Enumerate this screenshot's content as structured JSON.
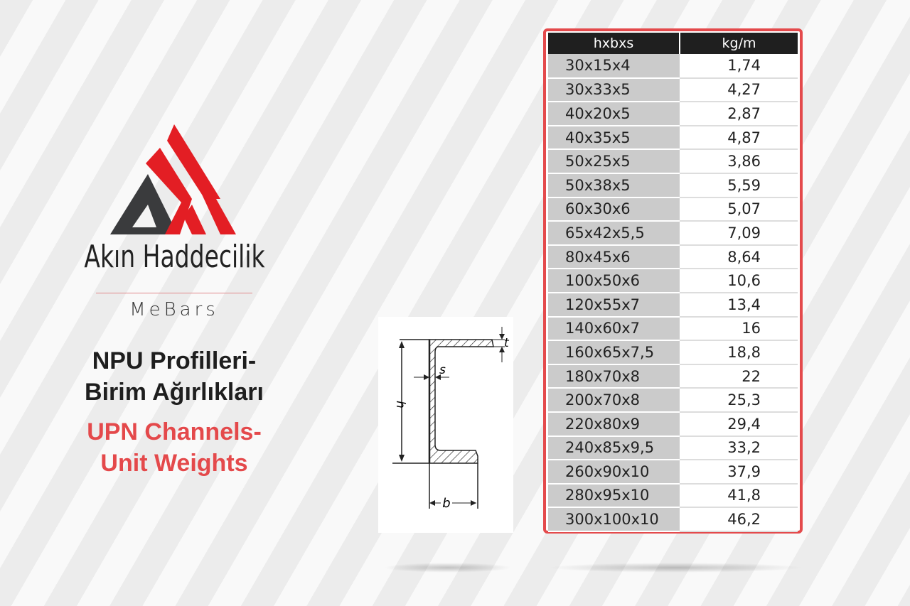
{
  "brand": {
    "name": "Akın Haddecilik",
    "sub": "MeBars",
    "colors": {
      "red": "#e31e24",
      "dark": "#3a3b3d"
    }
  },
  "title": {
    "tr_line1": "NPU Profilleri-",
    "tr_line2": "Birim Ağırlıkları",
    "en_line1": "UPN Channels-",
    "en_line2": "Unit Weights"
  },
  "diagram": {
    "labels": {
      "h": "h",
      "b": "b",
      "s": "s",
      "t": "t"
    }
  },
  "table": {
    "headers": [
      "hxbxs",
      "kg/m"
    ],
    "rows": [
      [
        "30x15x4",
        "1,74"
      ],
      [
        "30x33x5",
        "4,27"
      ],
      [
        "40x20x5",
        "2,87"
      ],
      [
        "40x35x5",
        "4,87"
      ],
      [
        "50x25x5",
        "3,86"
      ],
      [
        "50x38x5",
        "5,59"
      ],
      [
        "60x30x6",
        "5,07"
      ],
      [
        "65x42x5,5",
        "7,09"
      ],
      [
        "80x45x6",
        "8,64"
      ],
      [
        "100x50x6",
        "10,6"
      ],
      [
        "120x55x7",
        "13,4"
      ],
      [
        "140x60x7",
        "16"
      ],
      [
        "160x65x7,5",
        "18,8"
      ],
      [
        "180x70x8",
        "22"
      ],
      [
        "200x70x8",
        "25,3"
      ],
      [
        "220x80x9",
        "29,4"
      ],
      [
        "240x85x9,5",
        "33,2"
      ],
      [
        "260x90x10",
        "37,9"
      ],
      [
        "280x95x10",
        "41,8"
      ],
      [
        "300x100x10",
        "46,2"
      ]
    ],
    "border_color": "#e44a4c"
  }
}
